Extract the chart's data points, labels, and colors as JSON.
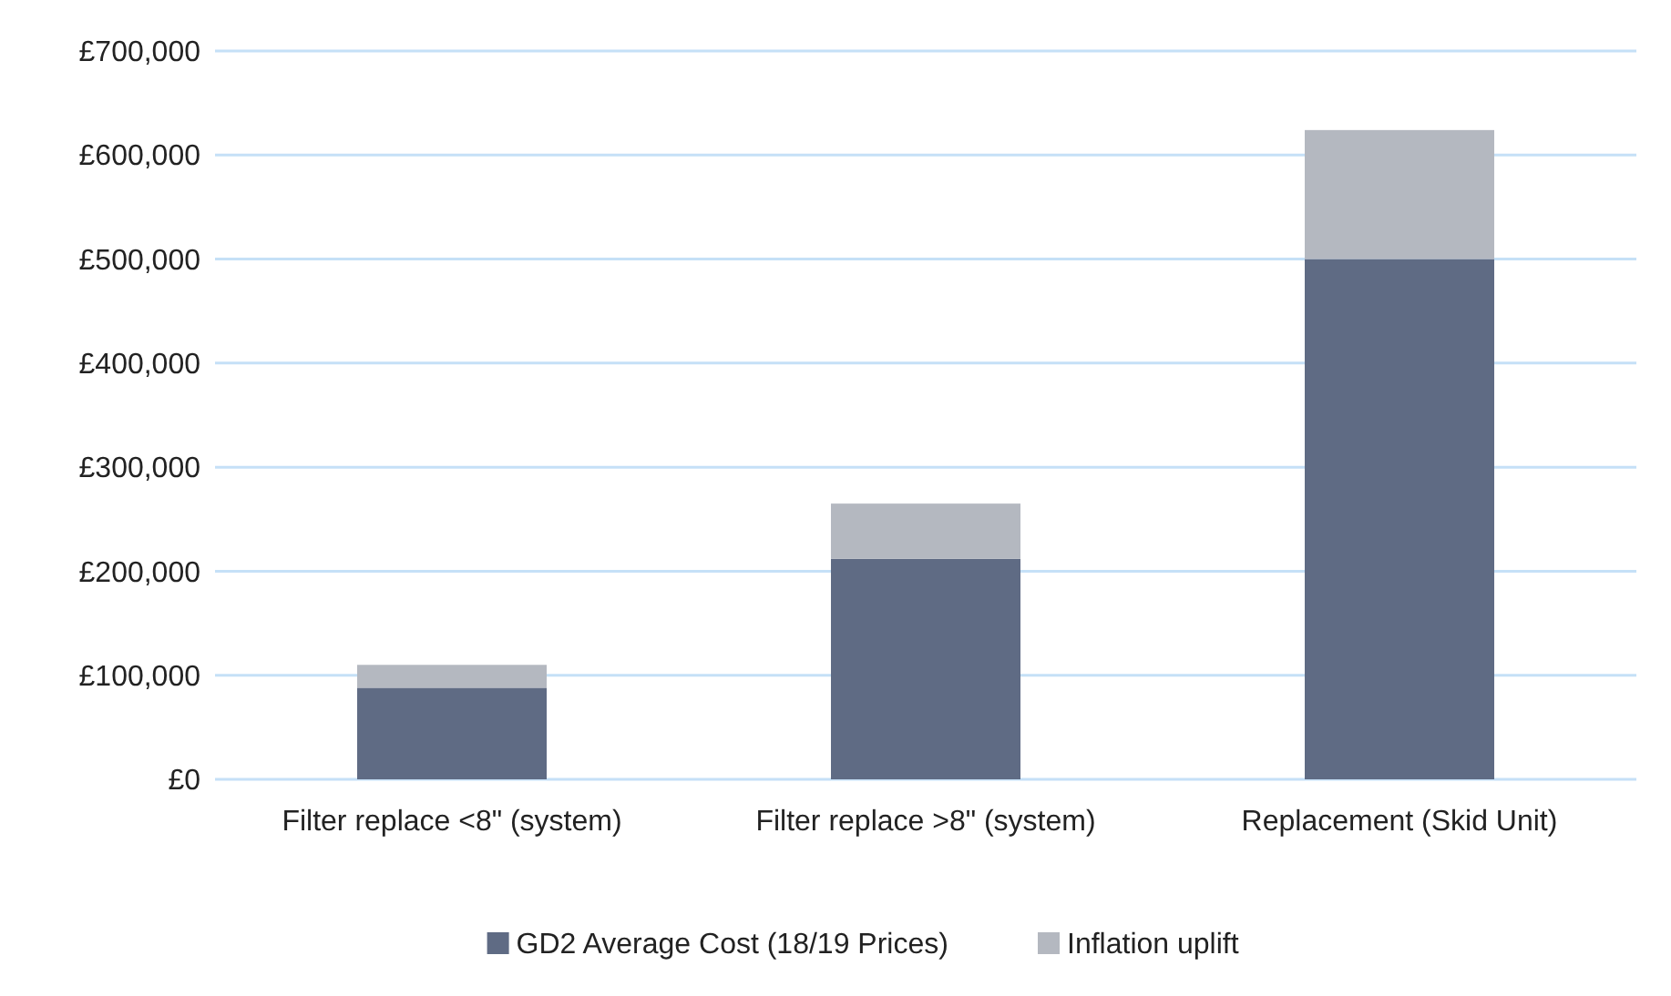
{
  "chart_data": {
    "type": "bar",
    "stacked": true,
    "categories": [
      "Filter replace <8\" (system)",
      "Filter replace >8\" (system)",
      "Replacement (Skid Unit)"
    ],
    "series": [
      {
        "name": "GD2 Average Cost (18/19 Prices)",
        "color": "#5f6b84",
        "values": [
          88000,
          212000,
          500000
        ]
      },
      {
        "name": "Inflation uplift",
        "color": "#b4b8c0",
        "values": [
          22000,
          53000,
          124000
        ]
      }
    ],
    "ylim": [
      0,
      700000
    ],
    "yticks": [
      {
        "value": 0,
        "label": "£0"
      },
      {
        "value": 100000,
        "label": "£100,000"
      },
      {
        "value": 200000,
        "label": "£200,000"
      },
      {
        "value": 300000,
        "label": "£300,000"
      },
      {
        "value": 400000,
        "label": "£400,000"
      },
      {
        "value": 500000,
        "label": "£500,000"
      },
      {
        "value": 600000,
        "label": "£600,000"
      },
      {
        "value": 700000,
        "label": "£700,000"
      }
    ],
    "grid": "y",
    "legend": "bottom"
  }
}
